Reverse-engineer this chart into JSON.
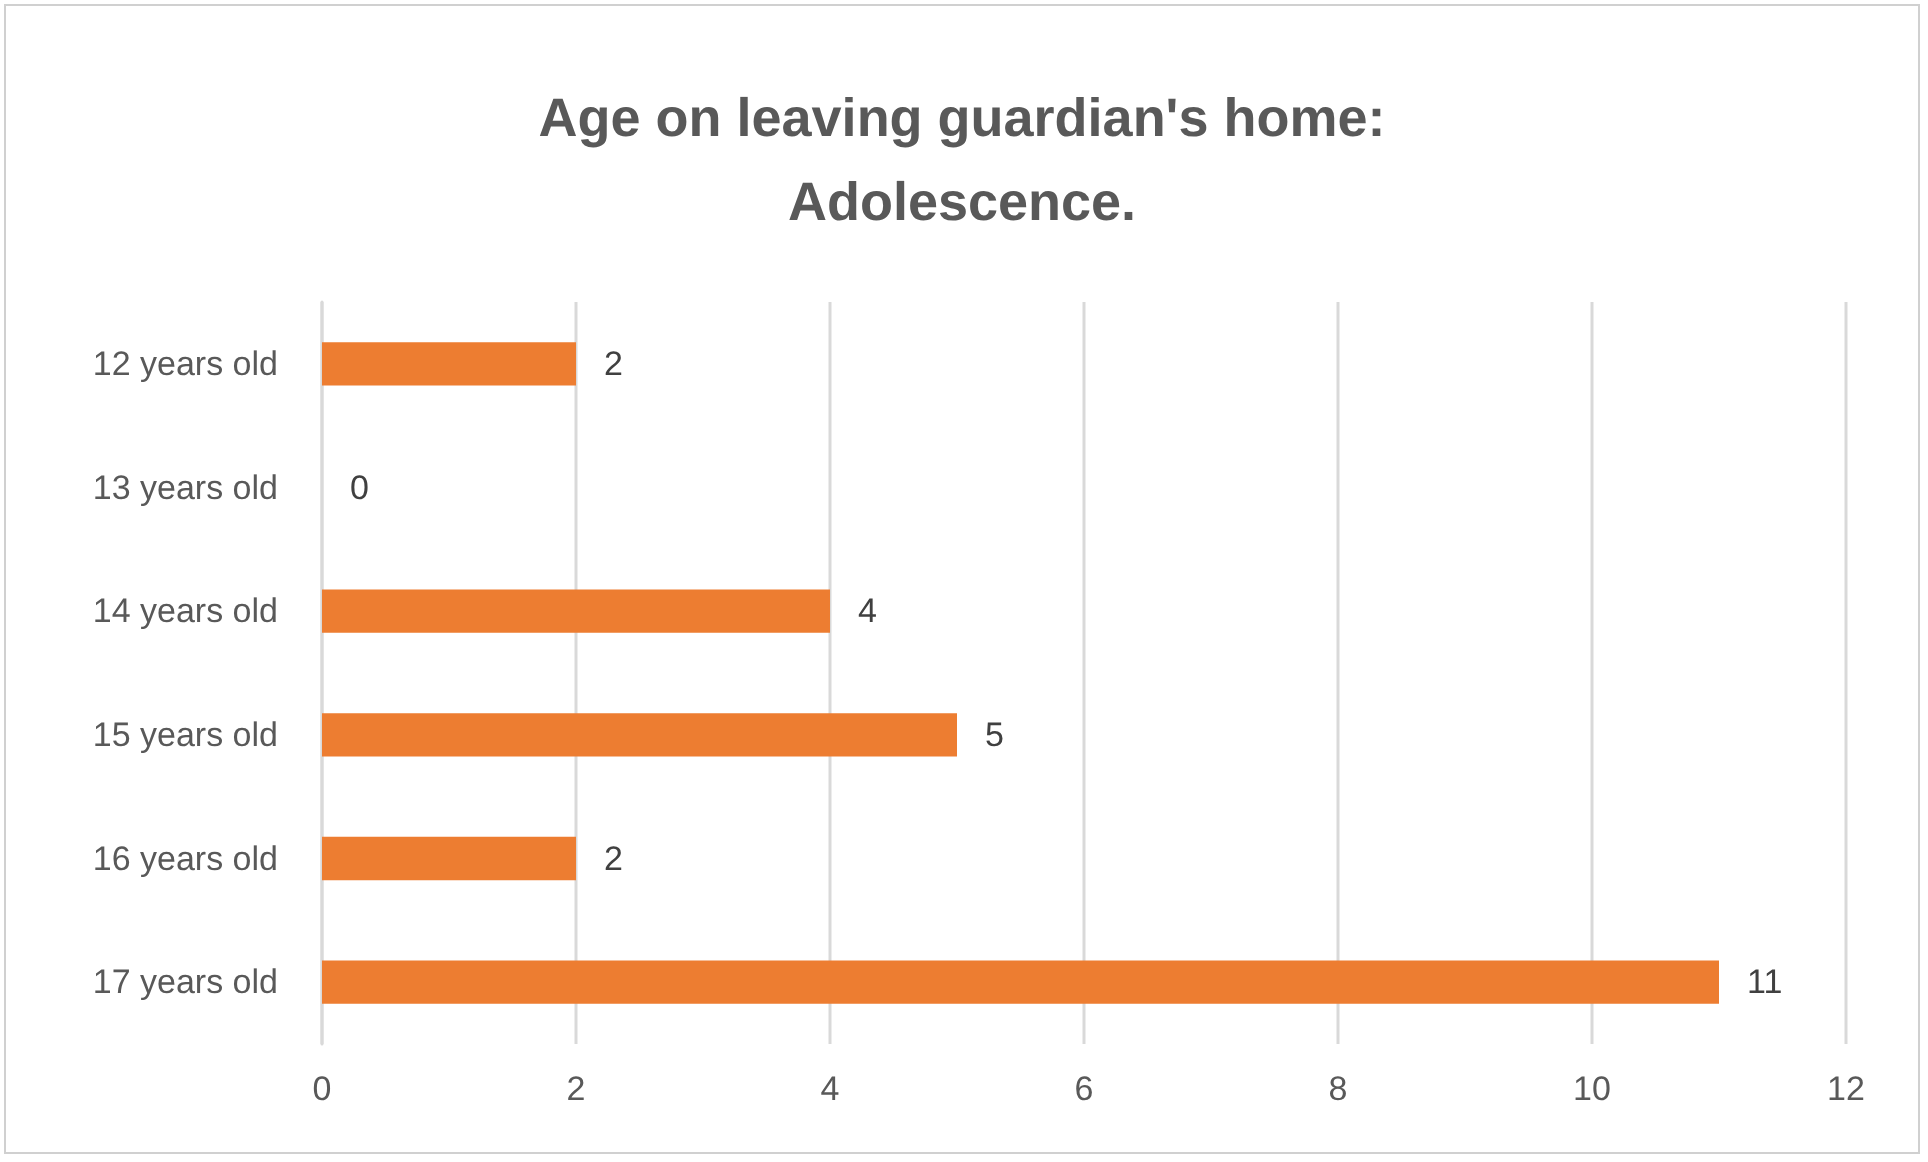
{
  "chart_data": {
    "type": "bar",
    "orientation": "horizontal",
    "title": "Age on leaving guardian's home:\nAdolescence.",
    "categories": [
      "12 years old",
      "13 years old",
      "14 years old",
      "15 years old",
      "16 years old",
      "17 years old"
    ],
    "values": [
      2,
      0,
      4,
      5,
      2,
      11
    ],
    "color": "#ed7d31",
    "xlim": [
      0,
      12
    ],
    "xticks": [
      0,
      2,
      4,
      6,
      8,
      10,
      12
    ],
    "grid": "x",
    "data_labels": true
  }
}
